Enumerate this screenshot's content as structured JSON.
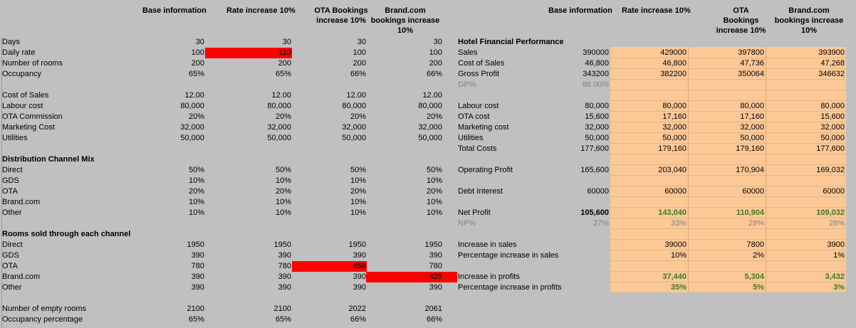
{
  "headers": {
    "left": [
      "Base information",
      "Rate increase 10%",
      "OTA Bookings increase 10%",
      "Brand.com bookings increase 10%"
    ],
    "right": [
      "Base information",
      "Rate increase 10%",
      "OTA Bookings increase 10%",
      "Brand.com bookings increase 10%"
    ]
  },
  "left_rows": [
    {
      "label": "Days",
      "vals": [
        "30",
        "30",
        "30",
        "30"
      ],
      "top": 0
    },
    {
      "label": "Daily rate",
      "vals": [
        "100",
        "110",
        "100",
        "100"
      ]
    },
    {
      "label": "Number of rooms",
      "vals": [
        "200",
        "200",
        "200",
        "200"
      ]
    },
    {
      "label": "Occupancy",
      "vals": [
        "65%",
        "65%",
        "66%",
        "66%"
      ]
    },
    {
      "label": "Cost of Sales",
      "vals": [
        "12.00",
        "12.00",
        "12.00",
        "12.00"
      ]
    },
    {
      "label": "Labour cost",
      "vals": [
        "80,000",
        "80,000",
        "80,000",
        "80,000"
      ]
    },
    {
      "label": "OTA Commission",
      "vals": [
        "20%",
        "20%",
        "20%",
        "20%"
      ]
    },
    {
      "label": "Marketing Cost",
      "vals": [
        "32,000",
        "32,000",
        "32,000",
        "32,000"
      ]
    },
    {
      "label": "Utilities",
      "vals": [
        "50,000",
        "50,000",
        "50,000",
        "50,000"
      ]
    },
    {
      "label": "Distribution Channel Mix",
      "vals": [
        "",
        "",
        "",
        ""
      ],
      "bold": true
    },
    {
      "label": "Direct",
      "vals": [
        "50%",
        "50%",
        "50%",
        "50%"
      ]
    },
    {
      "label": "GDS",
      "vals": [
        "10%",
        "10%",
        "10%",
        "10%"
      ]
    },
    {
      "label": "OTA",
      "vals": [
        "20%",
        "20%",
        "20%",
        "20%"
      ]
    },
    {
      "label": "Brand.com",
      "vals": [
        "10%",
        "10%",
        "10%",
        "10%"
      ]
    },
    {
      "label": "Other",
      "vals": [
        "10%",
        "10%",
        "10%",
        "10%"
      ]
    },
    {
      "label": "Rooms sold through each channel",
      "vals": [
        "",
        "",
        "",
        ""
      ],
      "bold": true
    },
    {
      "label": "Direct",
      "vals": [
        "1950",
        "1950",
        "1950",
        "1950"
      ]
    },
    {
      "label": "GDS",
      "vals": [
        "390",
        "390",
        "390",
        "390"
      ]
    },
    {
      "label": "OTA",
      "vals": [
        "780",
        "780",
        "858",
        "780"
      ]
    },
    {
      "label": "Brand.com",
      "vals": [
        "390",
        "390",
        "390",
        "429"
      ]
    },
    {
      "label": "Other",
      "vals": [
        "390",
        "390",
        "390",
        "390"
      ]
    },
    {
      "label": "Number of empty rooms",
      "vals": [
        "2100",
        "2100",
        "2022",
        "2061"
      ]
    },
    {
      "label": "Occupancy percentage",
      "vals": [
        "65%",
        "65%",
        "66%",
        "66%"
      ]
    }
  ],
  "right_rows": [
    {
      "label": "Hotel Financial Performance",
      "vals": [
        "",
        "",
        "",
        ""
      ],
      "bold": true
    },
    {
      "label": "Sales",
      "vals": [
        "390000",
        "429000",
        "397800",
        "393900"
      ]
    },
    {
      "label": "Cost of Sales",
      "vals": [
        "46,800",
        "46,800",
        "47,736",
        "47,268"
      ]
    },
    {
      "label": "Gross Profit",
      "vals": [
        "343200",
        "382200",
        "350064",
        "346632"
      ]
    },
    {
      "label": "GP%",
      "vals": [
        "88.00%",
        "",
        "",
        ""
      ],
      "grey": true
    },
    {
      "label": "Labour cost",
      "vals": [
        "80,000",
        "80,000",
        "80,000",
        "80,000"
      ]
    },
    {
      "label": "OTA cost",
      "vals": [
        "15,600",
        "17,160",
        "17,160",
        "15,600"
      ]
    },
    {
      "label": "Marketing cost",
      "vals": [
        "32,000",
        "32,000",
        "32,000",
        "32,000"
      ]
    },
    {
      "label": "Utilities",
      "vals": [
        "50,000",
        "50,000",
        "50,000",
        "50,000"
      ]
    },
    {
      "label": "Total Costs",
      "vals": [
        "177,600",
        "179,160",
        "179,160",
        "177,600"
      ]
    },
    {
      "label": "Operating Profit",
      "vals": [
        "165,600",
        "203,040",
        "170,904",
        "169,032"
      ]
    },
    {
      "label": "Debt Interest",
      "vals": [
        "60000",
        "60000",
        "60000",
        "60000"
      ]
    },
    {
      "label": "Net Profit",
      "vals": [
        "105,600",
        "143,040",
        "110,904",
        "109,032"
      ],
      "bold": true
    },
    {
      "label": "NP%",
      "vals": [
        "27%",
        "33%",
        "28%",
        "28%"
      ],
      "grey": true
    },
    {
      "label": "Increase in sales",
      "vals": [
        "",
        "39000",
        "7800",
        "3900"
      ]
    },
    {
      "label": "Percentage increase in sales",
      "vals": [
        "",
        "10%",
        "2%",
        "1%"
      ]
    },
    {
      "label": "Increase in profits",
      "vals": [
        "",
        "37,440",
        "5,304",
        "3,432"
      ],
      "bold": true
    },
    {
      "label": "Percentage increase in profits",
      "vals": [
        "",
        "35%",
        "5%",
        "3%"
      ],
      "bold": true
    }
  ]
}
